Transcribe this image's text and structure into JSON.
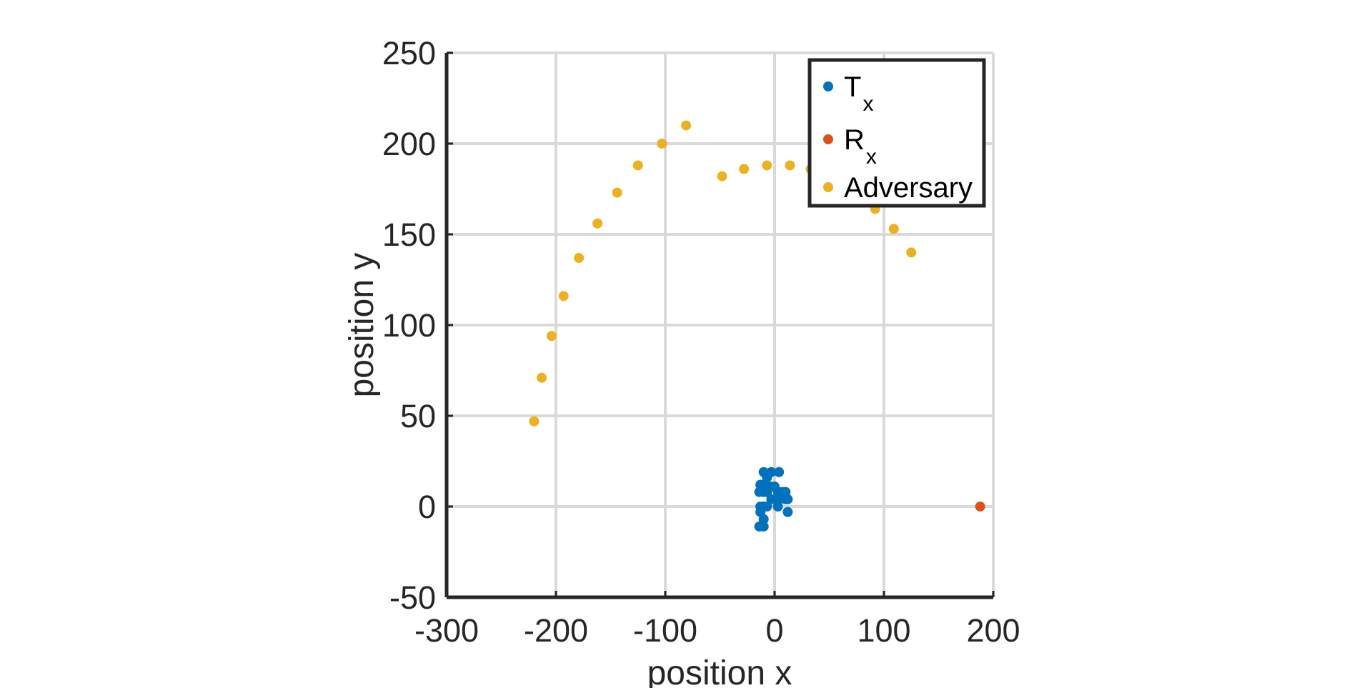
{
  "chart_data": {
    "type": "scatter",
    "title": "",
    "xlabel": "position x",
    "ylabel": "position y",
    "xlim": [
      -300,
      200
    ],
    "ylim": [
      -50,
      250
    ],
    "xticks": [
      -300,
      -200,
      -100,
      0,
      100,
      200
    ],
    "yticks": [
      -50,
      0,
      50,
      100,
      150,
      200,
      250
    ],
    "xtick_labels": [
      "-300",
      "-200",
      "-100",
      "0",
      "100",
      "200"
    ],
    "ytick_labels": [
      "-50",
      "0",
      "50",
      "100",
      "150",
      "200",
      "250"
    ],
    "grid": true,
    "legend_location": "top-right",
    "series": [
      {
        "name": "Tx",
        "label_main": "T",
        "label_sub": "x",
        "color": "#0072BD",
        "points": [
          [
            -10,
            19
          ],
          [
            -3,
            19
          ],
          [
            4,
            19
          ],
          [
            -7,
            16
          ],
          [
            -10,
            12
          ],
          [
            -13,
            12
          ],
          [
            -8,
            12
          ],
          [
            -3,
            11
          ],
          [
            0,
            11
          ],
          [
            3,
            8
          ],
          [
            -7,
            8
          ],
          [
            -10,
            8
          ],
          [
            -14,
            8
          ],
          [
            7,
            8
          ],
          [
            10,
            8
          ],
          [
            -3,
            4
          ],
          [
            4,
            4
          ],
          [
            10,
            4
          ],
          [
            12,
            4
          ],
          [
            -13,
            0
          ],
          [
            -10,
            0
          ],
          [
            -7,
            0
          ],
          [
            3,
            0
          ],
          [
            -13,
            -3
          ],
          [
            12,
            -3
          ],
          [
            -10,
            -7
          ],
          [
            -10,
            -11
          ],
          [
            -14,
            -11
          ]
        ]
      },
      {
        "name": "Rx",
        "label_main": "R",
        "label_sub": "x",
        "color": "#D95319",
        "points": [
          [
            188,
            0
          ]
        ]
      },
      {
        "name": "Adversary",
        "label_main": "Adversary",
        "label_sub": "",
        "color": "#EDB120",
        "points": [
          [
            -220,
            47
          ],
          [
            -213,
            71
          ],
          [
            -204,
            94
          ],
          [
            -193,
            116
          ],
          [
            -179,
            137
          ],
          [
            -162,
            156
          ],
          [
            -144,
            173
          ],
          [
            -125,
            188
          ],
          [
            -103,
            200
          ],
          [
            -81,
            210
          ],
          [
            -48,
            182
          ],
          [
            -28,
            186
          ],
          [
            -7,
            188
          ],
          [
            14,
            188
          ],
          [
            33,
            186
          ],
          [
            92,
            164
          ],
          [
            109,
            153
          ],
          [
            125,
            140
          ]
        ]
      }
    ]
  }
}
